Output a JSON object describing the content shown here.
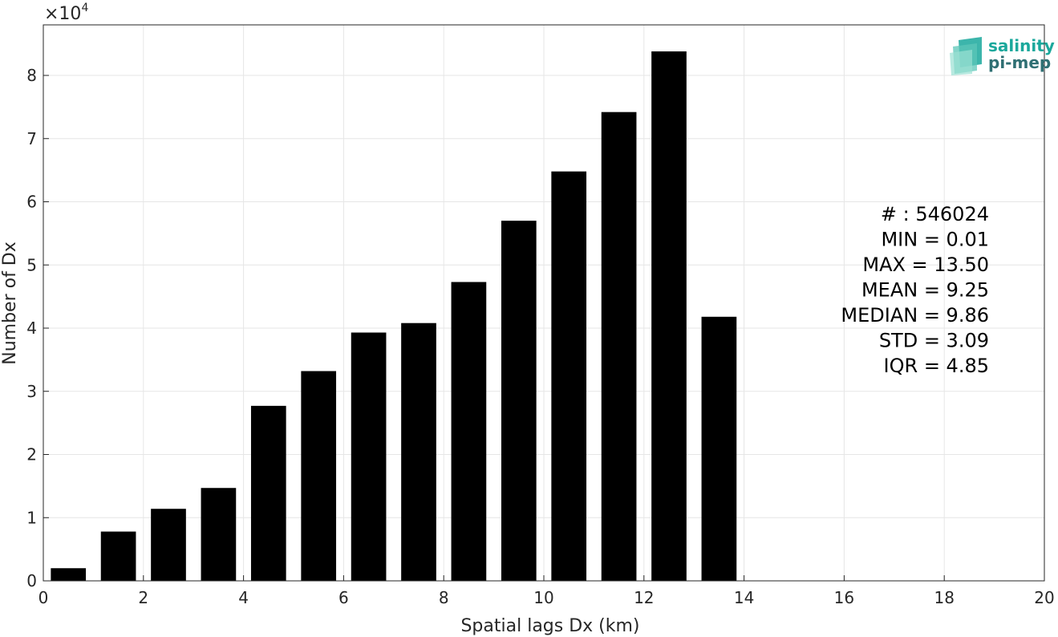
{
  "chart_data": {
    "type": "bar",
    "title": "",
    "xlabel": "Spatial lags Dx (km)",
    "ylabel": "Number of Dx",
    "y_multiplier_label": "×10",
    "y_multiplier_exponent": "4",
    "xlim": [
      0,
      20
    ],
    "ylim": [
      0,
      8.8
    ],
    "grid": true,
    "x_ticks": [
      0,
      2,
      4,
      6,
      8,
      10,
      12,
      14,
      16,
      18,
      20
    ],
    "y_ticks": [
      0,
      1,
      2,
      3,
      4,
      5,
      6,
      7,
      8
    ],
    "bin_width": 1,
    "bar_width": 0.7,
    "bar_color": "#000000",
    "x": [
      0.5,
      1.5,
      2.5,
      3.5,
      4.5,
      5.5,
      6.5,
      7.5,
      8.5,
      9.5,
      10.5,
      11.5,
      12.5,
      13.5
    ],
    "values": [
      0.2,
      0.78,
      1.14,
      1.47,
      2.77,
      3.32,
      3.93,
      4.08,
      4.73,
      5.7,
      6.48,
      7.42,
      8.38,
      4.18
    ]
  },
  "stats": [
    "# : 546024",
    "MIN = 0.01",
    "MAX =  13.50",
    "MEAN = 9.25",
    "MEDIAN = 9.86",
    "STD = 3.09",
    "IQR = 4.85"
  ],
  "logo": {
    "line1": "salinity",
    "line2": "pi-mep",
    "color1": "#1aa89c",
    "color2": "#2f6f73"
  }
}
